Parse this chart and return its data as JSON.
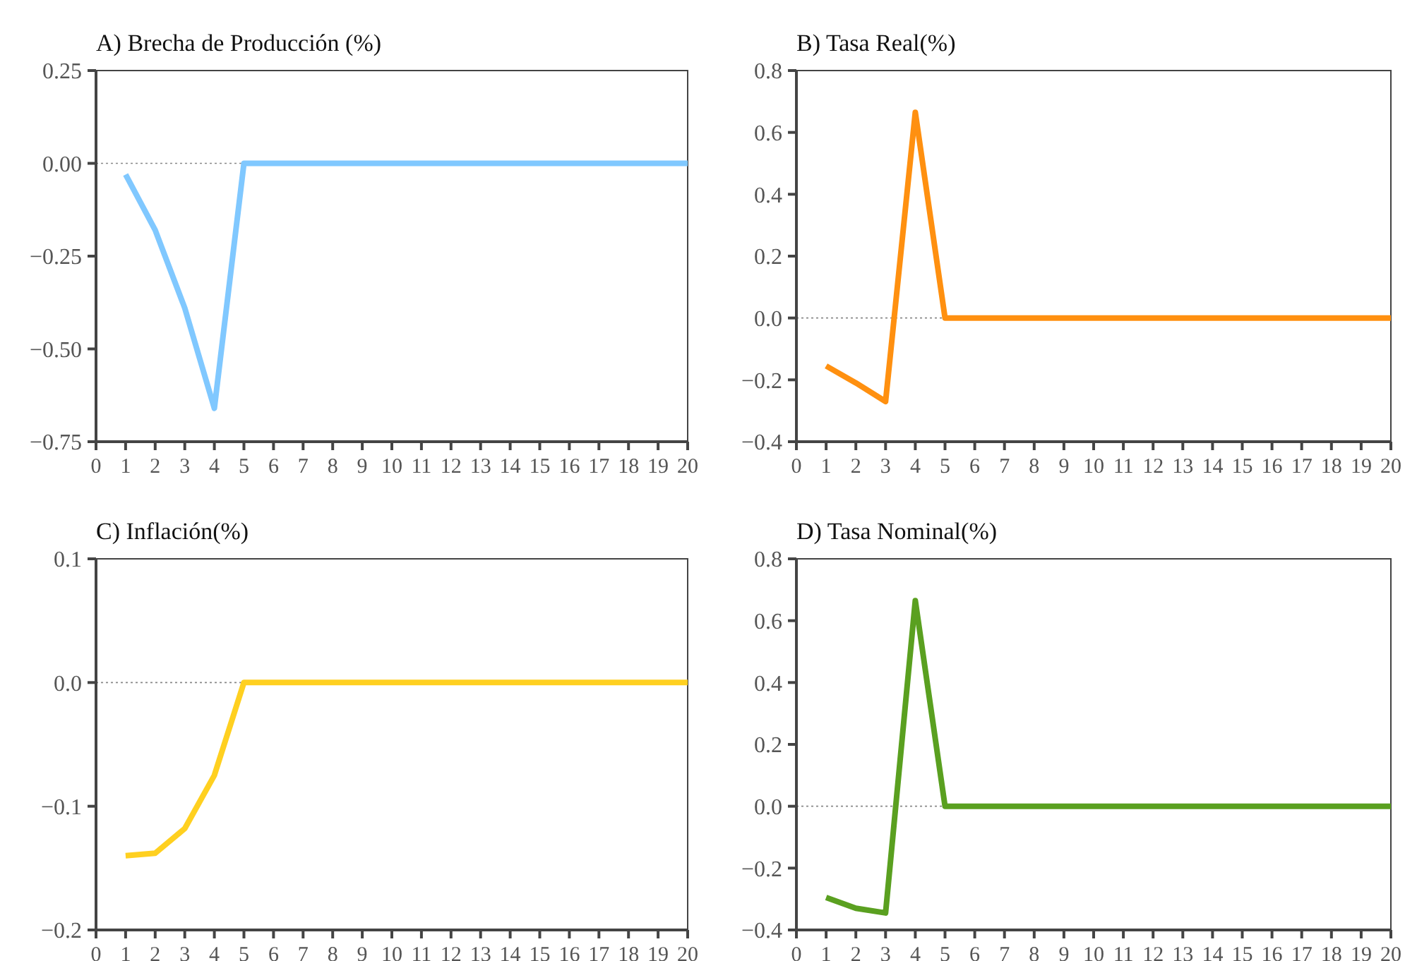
{
  "chart_data": [
    {
      "type": "line",
      "title": "A) Brecha de Producción (%)",
      "x": [
        1,
        2,
        3,
        4,
        5,
        6,
        7,
        8,
        9,
        10,
        11,
        12,
        13,
        14,
        15,
        16,
        17,
        18,
        19,
        20
      ],
      "series": [
        {
          "color": "#80c8ff",
          "values": [
            -0.03,
            -0.18,
            -0.39,
            -0.66,
            0,
            0,
            0,
            0,
            0,
            0,
            0,
            0,
            0,
            0,
            0,
            0,
            0,
            0,
            0,
            0
          ]
        }
      ],
      "xlim": [
        0,
        20
      ],
      "xticks": [
        0,
        1,
        2,
        3,
        4,
        5,
        6,
        7,
        8,
        9,
        10,
        11,
        12,
        13,
        14,
        15,
        16,
        17,
        18,
        19,
        20
      ],
      "ylim": [
        -0.75,
        0.25
      ],
      "yticks": [
        {
          "value": -0.75,
          "label": "−0.75"
        },
        {
          "value": -0.5,
          "label": "−0.50"
        },
        {
          "value": -0.25,
          "label": "−0.25"
        },
        {
          "value": 0,
          "label": "0.00"
        },
        {
          "value": 0.25,
          "label": "0.25"
        }
      ],
      "ref_lines": [
        {
          "axis": "y",
          "value": 0,
          "color": "#888888",
          "line_style": "dotted"
        }
      ],
      "grid": false
    },
    {
      "type": "line",
      "title": "B) Tasa Real(%)",
      "x": [
        1,
        2,
        3,
        4,
        5,
        6,
        7,
        8,
        9,
        10,
        11,
        12,
        13,
        14,
        15,
        16,
        17,
        18,
        19,
        20
      ],
      "series": [
        {
          "color": "#ff9010",
          "values": [
            -0.155,
            -0.21,
            -0.27,
            0.665,
            0,
            0,
            0,
            0,
            0,
            0,
            0,
            0,
            0,
            0,
            0,
            0,
            0,
            0,
            0,
            0
          ]
        }
      ],
      "xlim": [
        0,
        20
      ],
      "xticks": [
        0,
        1,
        2,
        3,
        4,
        5,
        6,
        7,
        8,
        9,
        10,
        11,
        12,
        13,
        14,
        15,
        16,
        17,
        18,
        19,
        20
      ],
      "ylim": [
        -0.4,
        0.8
      ],
      "yticks": [
        {
          "value": -0.4,
          "label": "−0.4"
        },
        {
          "value": -0.2,
          "label": "−0.2"
        },
        {
          "value": 0,
          "label": "0.0"
        },
        {
          "value": 0.2,
          "label": "0.2"
        },
        {
          "value": 0.4,
          "label": "0.4"
        },
        {
          "value": 0.6,
          "label": "0.6"
        },
        {
          "value": 0.8,
          "label": "0.8"
        }
      ],
      "ref_lines": [
        {
          "axis": "y",
          "value": 0,
          "color": "#888888",
          "line_style": "dotted"
        }
      ],
      "grid": false
    },
    {
      "type": "line",
      "title": "C) Inflación(%)",
      "x": [
        1,
        2,
        3,
        4,
        5,
        6,
        7,
        8,
        9,
        10,
        11,
        12,
        13,
        14,
        15,
        16,
        17,
        18,
        19,
        20
      ],
      "series": [
        {
          "color": "#ffd020",
          "values": [
            -0.14,
            -0.138,
            -0.118,
            -0.075,
            0,
            0,
            0,
            0,
            0,
            0,
            0,
            0,
            0,
            0,
            0,
            0,
            0,
            0,
            0,
            0
          ]
        }
      ],
      "xlim": [
        0,
        20
      ],
      "xticks": [
        0,
        1,
        2,
        3,
        4,
        5,
        6,
        7,
        8,
        9,
        10,
        11,
        12,
        13,
        14,
        15,
        16,
        17,
        18,
        19,
        20
      ],
      "ylim": [
        -0.2,
        0.1
      ],
      "yticks": [
        {
          "value": -0.2,
          "label": "−0.2"
        },
        {
          "value": -0.1,
          "label": "−0.1"
        },
        {
          "value": 0,
          "label": "0.0"
        },
        {
          "value": 0.1,
          "label": "0.1"
        }
      ],
      "ref_lines": [
        {
          "axis": "y",
          "value": 0,
          "color": "#888888",
          "line_style": "dotted"
        }
      ],
      "grid": false
    },
    {
      "type": "line",
      "title": "D) Tasa Nominal(%)",
      "x": [
        1,
        2,
        3,
        4,
        5,
        6,
        7,
        8,
        9,
        10,
        11,
        12,
        13,
        14,
        15,
        16,
        17,
        18,
        19,
        20
      ],
      "series": [
        {
          "color": "#5aa020",
          "values": [
            -0.295,
            -0.33,
            -0.345,
            0.665,
            0,
            0,
            0,
            0,
            0,
            0,
            0,
            0,
            0,
            0,
            0,
            0,
            0,
            0,
            0,
            0
          ]
        }
      ],
      "xlim": [
        0,
        20
      ],
      "xticks": [
        0,
        1,
        2,
        3,
        4,
        5,
        6,
        7,
        8,
        9,
        10,
        11,
        12,
        13,
        14,
        15,
        16,
        17,
        18,
        19,
        20
      ],
      "ylim": [
        -0.4,
        0.8
      ],
      "yticks": [
        {
          "value": -0.4,
          "label": "−0.4"
        },
        {
          "value": -0.2,
          "label": "−0.2"
        },
        {
          "value": 0,
          "label": "0.0"
        },
        {
          "value": 0.2,
          "label": "0.2"
        },
        {
          "value": 0.4,
          "label": "0.4"
        },
        {
          "value": 0.6,
          "label": "0.6"
        },
        {
          "value": 0.8,
          "label": "0.8"
        }
      ],
      "ref_lines": [
        {
          "axis": "y",
          "value": 0,
          "color": "#888888",
          "line_style": "dotted"
        }
      ],
      "grid": false
    }
  ]
}
